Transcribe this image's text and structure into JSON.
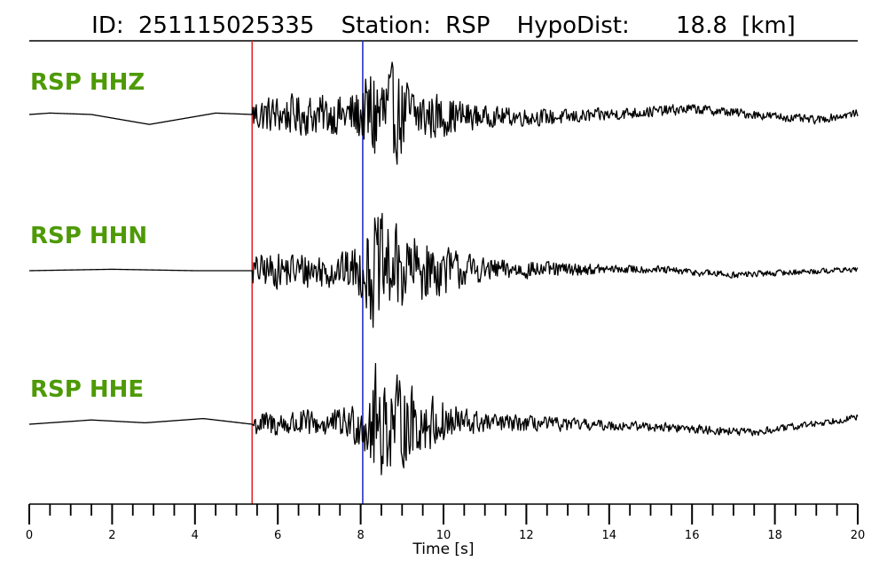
{
  "header": {
    "id_label": "ID:",
    "id_value": "251115025335",
    "station_label": "Station:",
    "station_value": "RSP",
    "hypodist_label": "HypoDist:",
    "hypodist_value": "18.8",
    "hypodist_unit": "[km]"
  },
  "colors": {
    "trace": "#000000",
    "label": "#4e9a06",
    "p_pick": "#e8262a",
    "s_pick": "#2431c4"
  },
  "chart_data": {
    "type": "line",
    "title": "ID: 251115025335   Station: RSP   HypoDist:    18.8 [km]",
    "xlabel": "Time [s]",
    "ylabel": "",
    "xlim": [
      0,
      20
    ],
    "x_major_ticks": [
      0,
      2,
      4,
      6,
      8,
      10,
      12,
      14,
      16,
      18,
      20
    ],
    "x_minor_tick_step": 0.5,
    "picks": [
      {
        "phase": "P",
        "time": 5.38
      },
      {
        "phase": "S",
        "time": 8.05
      }
    ],
    "series": [
      {
        "name": "RSP HHZ",
        "pre_event_wave": [
          [
            0,
            0.0
          ],
          [
            0.5,
            0.02
          ],
          [
            1.5,
            0.0
          ],
          [
            2.9,
            -0.14
          ],
          [
            4.5,
            0.02
          ],
          [
            5.38,
            0.0
          ]
        ],
        "envelope": [
          [
            5.38,
            0.0
          ],
          [
            5.4,
            0.28
          ],
          [
            6.5,
            0.32
          ],
          [
            7.5,
            0.32
          ],
          [
            8.05,
            0.45
          ],
          [
            8.3,
            0.95
          ],
          [
            8.7,
            0.8
          ],
          [
            9.5,
            0.42
          ],
          [
            11,
            0.16
          ],
          [
            14,
            0.1
          ],
          [
            16,
            0.08
          ],
          [
            20,
            0.06
          ]
        ],
        "drift": [
          [
            5.38,
            0.0
          ],
          [
            13,
            -0.04
          ],
          [
            16,
            0.08
          ],
          [
            19,
            -0.08
          ],
          [
            20,
            0.02
          ]
        ]
      },
      {
        "name": "RSP HHN",
        "pre_event_wave": [
          [
            0,
            0.0
          ],
          [
            2,
            0.02
          ],
          [
            4,
            0.0
          ],
          [
            5.38,
            0.0
          ]
        ],
        "envelope": [
          [
            5.38,
            0.0
          ],
          [
            5.4,
            0.25
          ],
          [
            6.5,
            0.3
          ],
          [
            7.5,
            0.28
          ],
          [
            8.05,
            0.45
          ],
          [
            8.3,
            0.95
          ],
          [
            8.7,
            0.75
          ],
          [
            9.5,
            0.5
          ],
          [
            11,
            0.18
          ],
          [
            14,
            0.07
          ],
          [
            20,
            0.04
          ]
        ],
        "drift": [
          [
            5.38,
            0.0
          ],
          [
            15,
            0.02
          ],
          [
            17,
            -0.06
          ],
          [
            20,
            0.02
          ]
        ]
      },
      {
        "name": "RSP HHE",
        "pre_event_wave": [
          [
            0,
            0.0
          ],
          [
            1.5,
            0.06
          ],
          [
            2.8,
            0.02
          ],
          [
            4.2,
            0.08
          ],
          [
            5.38,
            0.0
          ]
        ],
        "envelope": [
          [
            5.38,
            0.0
          ],
          [
            5.4,
            0.2
          ],
          [
            6.5,
            0.22
          ],
          [
            7.5,
            0.22
          ],
          [
            8.05,
            0.4
          ],
          [
            8.3,
            0.95
          ],
          [
            8.8,
            0.75
          ],
          [
            9.6,
            0.45
          ],
          [
            11,
            0.15
          ],
          [
            14,
            0.08
          ],
          [
            20,
            0.05
          ]
        ],
        "drift": [
          [
            5.38,
            0.0
          ],
          [
            11,
            0.02
          ],
          [
            15,
            -0.03
          ],
          [
            17.5,
            -0.12
          ],
          [
            20,
            0.1
          ]
        ]
      }
    ]
  }
}
